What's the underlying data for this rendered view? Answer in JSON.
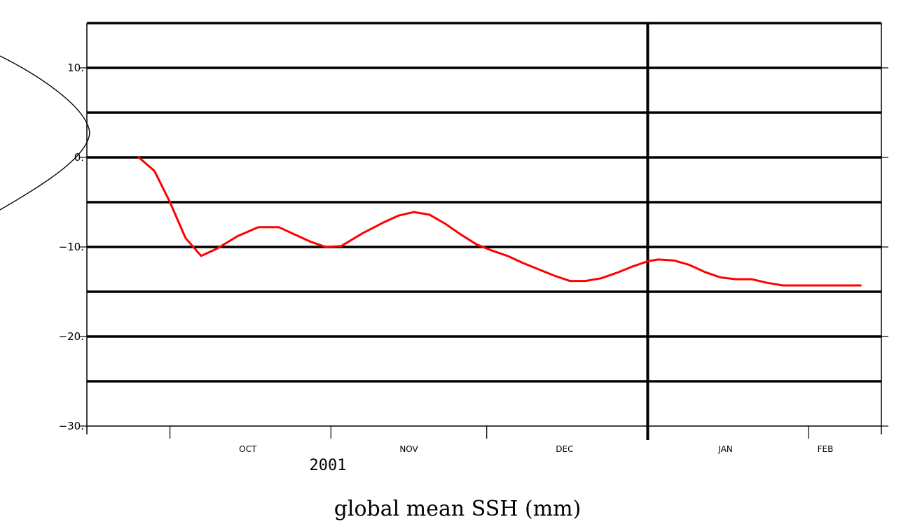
{
  "chart_data": {
    "type": "line",
    "title": "global mean SSH (mm)",
    "year_label": "2001",
    "xlabel": "",
    "ylabel": "",
    "ylim": [
      -30,
      15
    ],
    "y_ticks": [
      -30,
      -20,
      -10,
      0,
      10
    ],
    "y_tick_labels": [
      "−30.",
      "−20.",
      "−10.",
      "0.",
      "10."
    ],
    "x_range": [
      "2001-09-15",
      "2002-02-15"
    ],
    "x_tick_labels": [
      "OCT",
      "NOV",
      "DEC",
      "JAN",
      "FEB"
    ],
    "gridlines_y": [
      -25,
      -20,
      -15,
      -10,
      -5,
      0,
      5,
      10,
      15
    ],
    "vertical_marker": "2002-01-01",
    "grid": true,
    "series": [
      {
        "color": "#ff0000",
        "x": [
          "2001-09-25",
          "2001-09-28",
          "2001-10-01",
          "2001-10-04",
          "2001-10-07",
          "2001-10-10",
          "2001-10-14",
          "2001-10-18",
          "2001-10-22",
          "2001-10-25",
          "2001-10-28",
          "2001-10-31",
          "2001-11-03",
          "2001-11-07",
          "2001-11-11",
          "2001-11-14",
          "2001-11-17",
          "2001-11-20",
          "2001-11-23",
          "2001-11-26",
          "2001-11-29",
          "2001-12-02",
          "2001-12-05",
          "2001-12-08",
          "2001-12-11",
          "2001-12-14",
          "2001-12-17",
          "2001-12-20",
          "2001-12-23",
          "2001-12-26",
          "2001-12-29",
          "2002-01-01",
          "2002-01-03",
          "2002-01-06",
          "2002-01-09",
          "2002-01-12",
          "2002-01-15",
          "2002-01-18",
          "2002-01-21",
          "2002-01-24",
          "2002-01-27",
          "2002-01-30",
          "2002-02-02",
          "2002-02-05",
          "2002-02-08",
          "2002-02-11"
        ],
        "y": [
          0,
          -1.5,
          -5,
          -9,
          -11,
          -10.2,
          -8.8,
          -7.8,
          -7.8,
          -8.6,
          -9.4,
          -10,
          -9.9,
          -8.5,
          -7.3,
          -6.5,
          -6.1,
          -6.4,
          -7.4,
          -8.6,
          -9.7,
          -10.4,
          -11,
          -11.8,
          -12.5,
          -13.2,
          -13.8,
          -13.8,
          -13.5,
          -12.9,
          -12.2,
          -11.6,
          -11.4,
          -11.5,
          -12,
          -12.8,
          -13.4,
          -13.6,
          -13.6,
          -14,
          -14.3,
          -14.3,
          -14.3,
          -14.3,
          -14.3,
          -14.3
        ]
      }
    ]
  }
}
